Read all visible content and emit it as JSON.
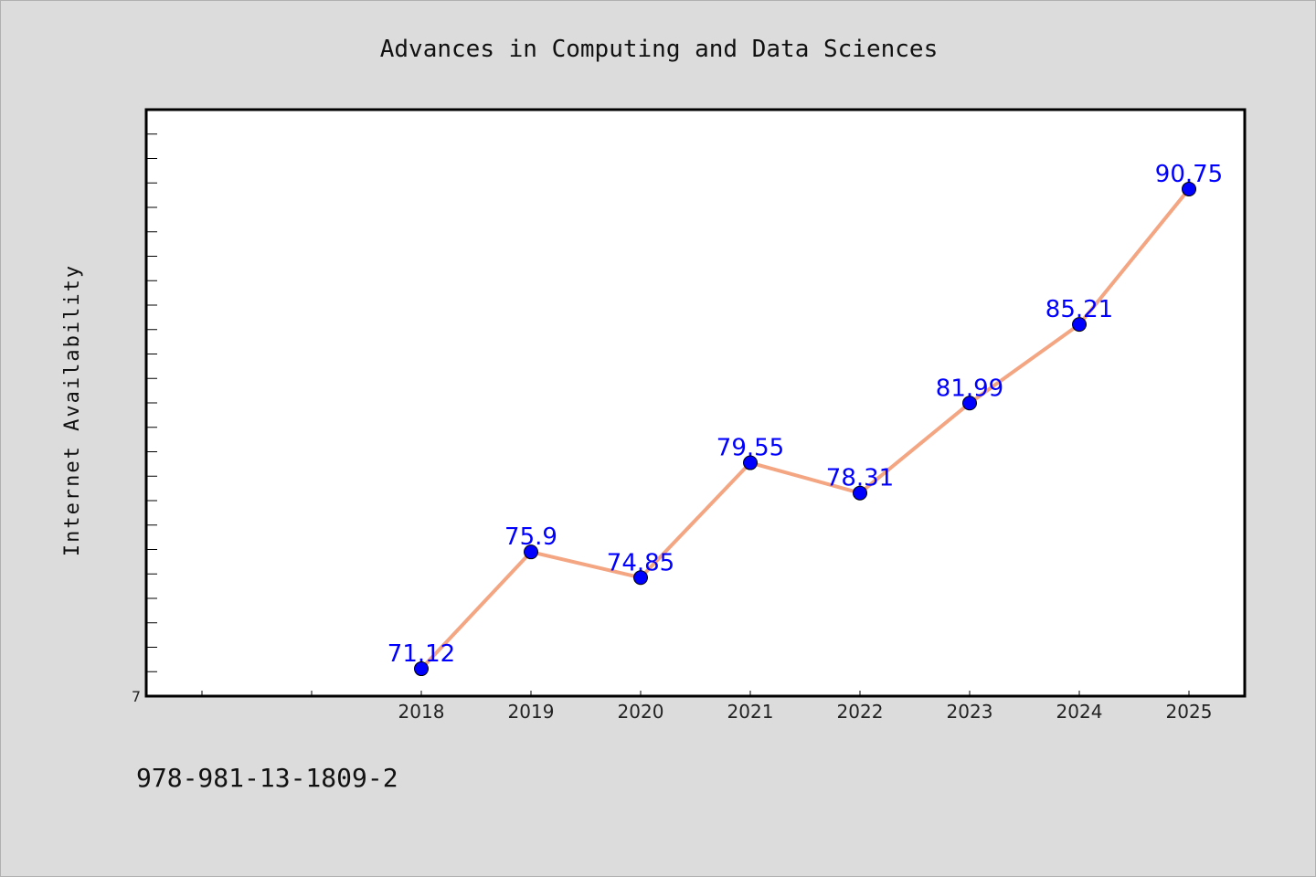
{
  "chart_data": {
    "type": "line",
    "title": "Advances in Computing and Data Sciences",
    "xlabel": "",
    "ylabel": "Internet Availability",
    "categories": [
      "",
      "",
      "2018",
      "2019",
      "2020",
      "2021",
      "2022",
      "2023",
      "2024",
      "2025"
    ],
    "x": [
      "2018",
      "2019",
      "2020",
      "2021",
      "2022",
      "2023",
      "2024",
      "2025"
    ],
    "series": [
      {
        "values": [
          71.12,
          75.9,
          74.85,
          79.55,
          78.31,
          81.99,
          85.21,
          90.75
        ],
        "data_labels": [
          "71.12",
          "75.9",
          "74.85",
          "79.55",
          "78.31",
          "81.99",
          "85.21",
          "90.75"
        ]
      }
    ],
    "ylim": [
      70,
      94
    ],
    "y_tick_labels": [
      "7"
    ],
    "grid": false,
    "line_color": "#f4a582",
    "marker_color": "#0000ff",
    "label_color": "#0000ff"
  },
  "footer": {
    "isbn": "978-981-13-1809-2"
  }
}
